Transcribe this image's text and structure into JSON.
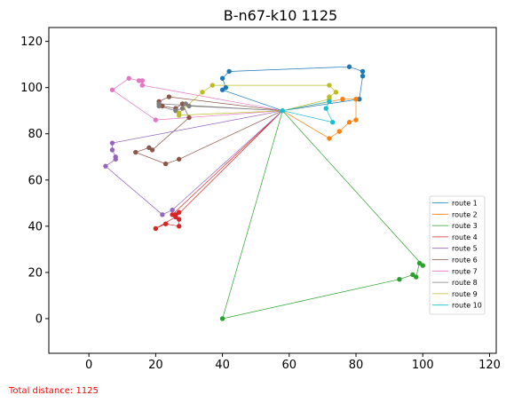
{
  "chart_data": {
    "type": "scatter",
    "title": "B-n67-k10 1125",
    "xlim": [
      -12,
      122
    ],
    "ylim": [
      -15,
      126
    ],
    "xticks": [
      0,
      20,
      40,
      60,
      80,
      100,
      120
    ],
    "yticks": [
      0,
      20,
      40,
      60,
      80,
      100,
      120
    ],
    "grid": false,
    "legend_position": "lower-right",
    "depot": [
      58,
      90
    ],
    "series": [
      {
        "name": "route 1",
        "color": "#1f77b4",
        "points": [
          [
            40,
            99
          ],
          [
            41,
            100
          ],
          [
            40,
            104
          ],
          [
            42,
            107
          ],
          [
            78,
            109
          ],
          [
            82,
            107
          ],
          [
            82,
            105
          ],
          [
            81,
            95
          ]
        ]
      },
      {
        "name": "route 2",
        "color": "#ff7f0e",
        "points": [
          [
            76,
            95
          ],
          [
            80,
            95
          ],
          [
            80,
            86
          ],
          [
            78,
            85
          ],
          [
            75,
            81
          ],
          [
            72,
            78
          ]
        ]
      },
      {
        "name": "route 3",
        "color": "#2ca02c",
        "points": [
          [
            40,
            0
          ],
          [
            93,
            17
          ],
          [
            97,
            19
          ],
          [
            98,
            18
          ],
          [
            99,
            24
          ],
          [
            100,
            23
          ]
        ]
      },
      {
        "name": "route 4",
        "color": "#d62728",
        "points": [
          [
            25,
            45
          ],
          [
            27,
            46
          ],
          [
            26,
            45
          ],
          [
            27,
            43
          ],
          [
            27,
            40
          ],
          [
            23,
            41
          ],
          [
            20,
            39
          ],
          [
            26,
            44
          ]
        ]
      },
      {
        "name": "route 5",
        "color": "#9467bd",
        "points": [
          [
            7,
            76
          ],
          [
            7,
            73
          ],
          [
            8,
            70
          ],
          [
            8,
            69
          ],
          [
            5,
            66
          ],
          [
            22,
            45
          ],
          [
            25,
            47
          ]
        ]
      },
      {
        "name": "route 6",
        "color": "#8c564b",
        "points": [
          [
            24,
            96
          ],
          [
            21,
            94
          ],
          [
            22,
            92
          ],
          [
            26,
            91
          ],
          [
            28,
            93
          ],
          [
            30,
            87
          ],
          [
            19,
            73
          ],
          [
            18,
            74
          ],
          [
            14,
            72
          ],
          [
            23,
            67
          ],
          [
            27,
            69
          ]
        ]
      },
      {
        "name": "route 7",
        "color": "#e377c2",
        "points": [
          [
            20,
            86
          ],
          [
            7,
            99
          ],
          [
            12,
            104
          ],
          [
            15,
            103
          ],
          [
            16,
            103
          ],
          [
            16,
            101
          ]
        ]
      },
      {
        "name": "route 8",
        "color": "#7f7f7f",
        "points": [
          [
            21,
            93
          ],
          [
            21,
            92
          ],
          [
            26,
            90
          ],
          [
            28,
            91
          ],
          [
            29,
            93
          ],
          [
            30,
            92
          ]
        ]
      },
      {
        "name": "route 9",
        "color": "#bcbd22",
        "points": [
          [
            27,
            88
          ],
          [
            27,
            89
          ],
          [
            34,
            98
          ],
          [
            37,
            101
          ],
          [
            72,
            101
          ],
          [
            74,
            98
          ],
          [
            72,
            96
          ],
          [
            72,
            95
          ]
        ]
      },
      {
        "name": "route 10",
        "color": "#17becf",
        "points": [
          [
            73,
            85
          ],
          [
            71,
            91
          ],
          [
            72,
            94
          ]
        ]
      }
    ]
  },
  "footer": {
    "total_distance": "Total distance: 1125"
  }
}
